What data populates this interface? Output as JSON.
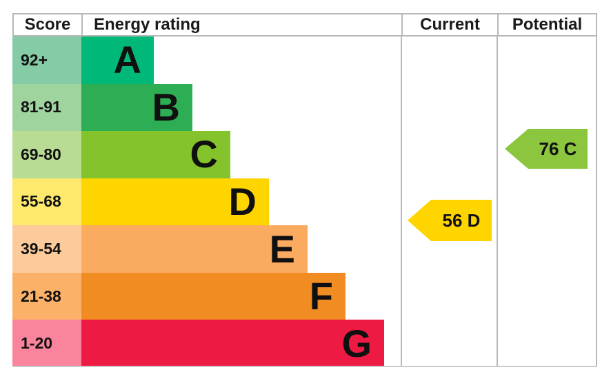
{
  "header": {
    "score_label": "Score",
    "energy_rating_label": "Energy rating",
    "current_label": "Current",
    "potential_label": "Potential"
  },
  "chart_data": {
    "type": "epc-energy-rating-chart",
    "columns": [
      "Score",
      "Energy rating",
      "Current",
      "Potential"
    ],
    "bands": [
      {
        "letter": "A",
        "score_range": "92+",
        "score_min": 92,
        "score_max": 100,
        "bar_color": "#00b878",
        "score_cell_color": "#84cba6"
      },
      {
        "letter": "B",
        "score_range": "81-91",
        "score_min": 81,
        "score_max": 91,
        "bar_color": "#2eae54",
        "score_cell_color": "#9fd49f"
      },
      {
        "letter": "C",
        "score_range": "69-80",
        "score_min": 69,
        "score_max": 80,
        "bar_color": "#85c32c",
        "score_cell_color": "#b8dc94"
      },
      {
        "letter": "D",
        "score_range": "55-68",
        "score_min": 55,
        "score_max": 68,
        "bar_color": "#ffd500",
        "score_cell_color": "#ffe96d"
      },
      {
        "letter": "E",
        "score_range": "39-54",
        "score_min": 39,
        "score_max": 54,
        "bar_color": "#fbab60",
        "score_cell_color": "#fdcb9b"
      },
      {
        "letter": "F",
        "score_range": "21-38",
        "score_min": 21,
        "score_max": 38,
        "bar_color": "#f18c22",
        "score_cell_color": "#fbb168"
      },
      {
        "letter": "G",
        "score_range": "1-20",
        "score_min": 1,
        "score_max": 20,
        "bar_color": "#ed1b44",
        "score_cell_color": "#f9849c"
      }
    ],
    "current": {
      "score": 56,
      "band": "D",
      "label": "56 D",
      "arrow_color": "#ffd500"
    },
    "potential": {
      "score": 76,
      "band": "C",
      "label": "76 C",
      "arrow_color": "#8cc63f"
    }
  }
}
